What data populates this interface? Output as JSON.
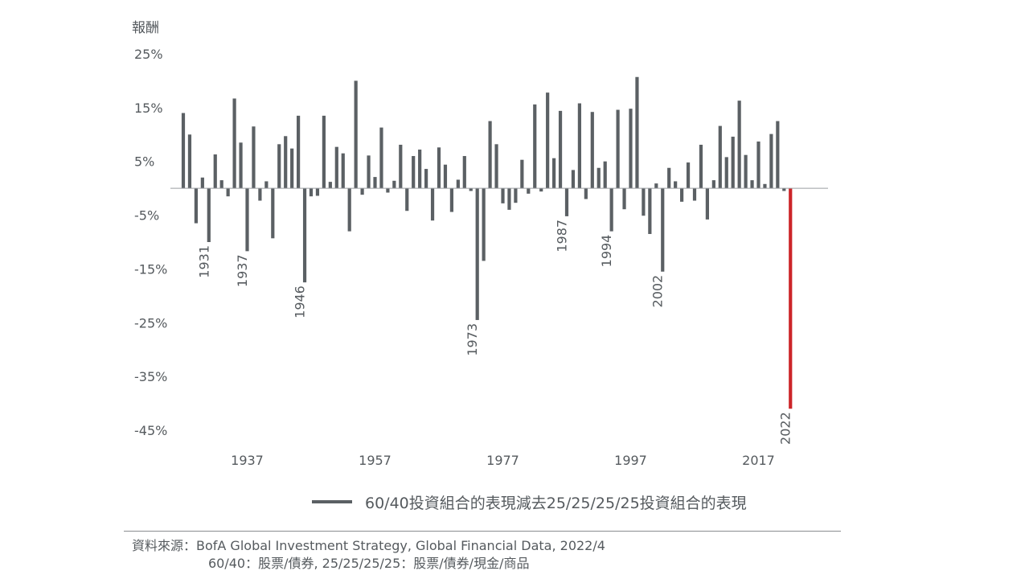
{
  "chart_data": {
    "type": "bar",
    "ylabel": "報酬",
    "ylim": [
      -45,
      25
    ],
    "yticks": [
      "25%",
      "15%",
      "5%",
      "-5%",
      "-15%",
      "-25%",
      "-35%",
      "-45%"
    ],
    "ytick_values": [
      25,
      15,
      5,
      -5,
      -15,
      -25,
      -35,
      -45
    ],
    "xticks": [
      "1937",
      "1957",
      "1977",
      "1997",
      "2017"
    ],
    "xtick_years": [
      1937,
      1957,
      1977,
      1997,
      2017
    ],
    "grid": false,
    "legend_position": "bottom",
    "series": [
      {
        "name": "60/40投資組合的表現減去25/25/25/25投資組合的表現",
        "years": [
          1927,
          1928,
          1929,
          1930,
          1931,
          1932,
          1933,
          1934,
          1935,
          1936,
          1937,
          1938,
          1939,
          1940,
          1941,
          1942,
          1943,
          1944,
          1945,
          1946,
          1947,
          1948,
          1949,
          1950,
          1951,
          1952,
          1953,
          1954,
          1955,
          1956,
          1957,
          1958,
          1959,
          1960,
          1961,
          1962,
          1963,
          1964,
          1965,
          1966,
          1967,
          1968,
          1969,
          1970,
          1971,
          1972,
          1973,
          1974,
          1975,
          1976,
          1977,
          1978,
          1979,
          1980,
          1981,
          1982,
          1983,
          1984,
          1985,
          1986,
          1987,
          1988,
          1989,
          1990,
          1991,
          1992,
          1993,
          1994,
          1995,
          1996,
          1997,
          1998,
          1999,
          2000,
          2001,
          2002,
          2003,
          2004,
          2005,
          2006,
          2007,
          2008,
          2009,
          2010,
          2011,
          2012,
          2013,
          2014,
          2015,
          2016,
          2017,
          2018,
          2019,
          2020,
          2021,
          2022
        ],
        "values": [
          14.0,
          10.0,
          -6.5,
          2.0,
          -10.0,
          6.3,
          1.5,
          -1.5,
          16.7,
          8.5,
          -11.7,
          11.5,
          -2.3,
          1.3,
          -9.3,
          8.2,
          9.7,
          7.4,
          13.5,
          -17.5,
          -1.5,
          -1.4,
          13.5,
          1.2,
          7.7,
          6.5,
          -8.0,
          20.0,
          -1.2,
          6.1,
          2.1,
          11.3,
          -0.8,
          1.4,
          8.1,
          -4.2,
          6.0,
          7.2,
          3.6,
          -6.0,
          7.6,
          4.4,
          -4.4,
          1.6,
          6.0,
          -0.5,
          -24.5,
          -13.5,
          12.5,
          8.2,
          -2.8,
          -4.0,
          -2.7,
          5.3,
          -1.0,
          15.6,
          -0.6,
          17.8,
          5.6,
          14.4,
          -5.2,
          3.4,
          15.8,
          -2.0,
          14.2,
          3.8,
          5.0,
          -8.0,
          14.6,
          -3.9,
          14.8,
          20.7,
          -5.1,
          -8.5,
          0.9,
          -15.5,
          3.8,
          1.3,
          -2.5,
          4.8,
          -2.3,
          8.1,
          -5.8,
          1.5,
          11.6,
          5.8,
          9.6,
          16.3,
          6.2,
          1.5,
          8.7,
          0.8,
          10.1,
          12.5,
          -0.5,
          -41.0
        ],
        "color": "#5b6064"
      }
    ],
    "highlight": {
      "year": 2022,
      "color": "#cc2529"
    },
    "annotations": [
      {
        "year": 1931,
        "label": "1931"
      },
      {
        "year": 1937,
        "label": "1937"
      },
      {
        "year": 1946,
        "label": "1946"
      },
      {
        "year": 1973,
        "label": "1973"
      },
      {
        "year": 1987,
        "label": "1987"
      },
      {
        "year": 1994,
        "label": "1994"
      },
      {
        "year": 2002,
        "label": "2002"
      },
      {
        "year": 2022,
        "label": "2022"
      }
    ]
  },
  "legend": {
    "label": "60/40投資組合的表現減去25/25/25/25投資組合的表現",
    "color": "#5b6064"
  },
  "source": {
    "line1": "資料來源：BofA Global Investment Strategy, Global Financial Data,  2022/4",
    "line2": "60/40：股票/債券, 25/25/25/25：股票/債券/現金/商品"
  }
}
